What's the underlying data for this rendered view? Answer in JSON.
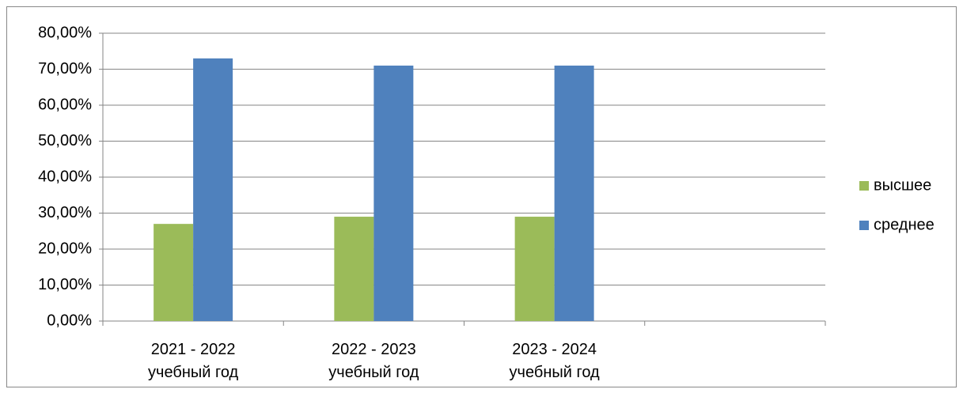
{
  "chart_data": {
    "type": "bar",
    "categories": [
      "2021 - 2022 учебный год",
      "2022 - 2023 учебный год",
      "2023 - 2024 учебный год",
      null
    ],
    "series": [
      {
        "name": "высшее",
        "color": "#9bbb59",
        "values": [
          27,
          29,
          29,
          null
        ]
      },
      {
        "name": "среднее",
        "color": "#4f81bd",
        "values": [
          73,
          71,
          71,
          null
        ]
      }
    ],
    "ylim": [
      0,
      80
    ],
    "yticks": [
      {
        "value": 0,
        "label": "0,00%"
      },
      {
        "value": 10,
        "label": "10,00%"
      },
      {
        "value": 20,
        "label": "20,00%"
      },
      {
        "value": 30,
        "label": "30,00%"
      },
      {
        "value": 40,
        "label": "40,00%"
      },
      {
        "value": 50,
        "label": "50,00%"
      },
      {
        "value": 60,
        "label": "60,00%"
      },
      {
        "value": 70,
        "label": "70,00%"
      },
      {
        "value": 80,
        "label": "80,00%"
      }
    ],
    "grid": true,
    "legend": "right"
  }
}
